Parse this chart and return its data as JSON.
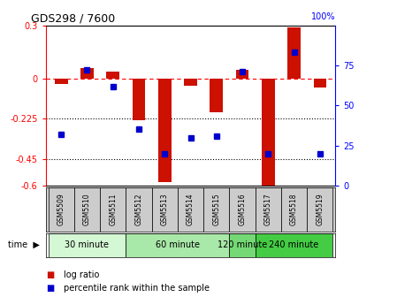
{
  "title": "GDS298 / 7600",
  "samples": [
    "GSM5509",
    "GSM5510",
    "GSM5511",
    "GSM5512",
    "GSM5513",
    "GSM5514",
    "GSM5515",
    "GSM5516",
    "GSM5517",
    "GSM5518",
    "GSM5519"
  ],
  "log_ratio": [
    -0.03,
    0.06,
    0.04,
    -0.235,
    -0.58,
    -0.04,
    -0.19,
    0.05,
    -0.62,
    0.29,
    -0.05
  ],
  "percentile": [
    32,
    72,
    62,
    35,
    20,
    30,
    31,
    71,
    20,
    83,
    20
  ],
  "groups": [
    {
      "label": "30 minute",
      "start": 0,
      "end": 2,
      "color": "#d4f7d4"
    },
    {
      "label": "60 minute",
      "start": 3,
      "end": 6,
      "color": "#a8e8a8"
    },
    {
      "label": "120 minute",
      "start": 7,
      "end": 7,
      "color": "#74d974"
    },
    {
      "label": "240 minute",
      "start": 8,
      "end": 10,
      "color": "#44cc44"
    }
  ],
  "bar_color": "#cc1100",
  "dot_color": "#0000cc",
  "ylim_left": [
    -0.6,
    0.3
  ],
  "ylim_right": [
    0,
    100
  ],
  "yticks_left": [
    0.3,
    0.0,
    -0.225,
    -0.45,
    -0.6
  ],
  "ytick_labels_left": [
    "0.3",
    "0",
    "-0.225",
    "-0.45",
    "-0.6"
  ],
  "yticks_right": [
    75,
    50,
    25,
    0
  ],
  "ytick_labels_right": [
    "75",
    "50",
    "25",
    "0"
  ],
  "bar_width": 0.5,
  "legend_labels": [
    "log ratio",
    "percentile rank within the sample"
  ],
  "sample_bg": "#cccccc",
  "background_color": "#ffffff"
}
